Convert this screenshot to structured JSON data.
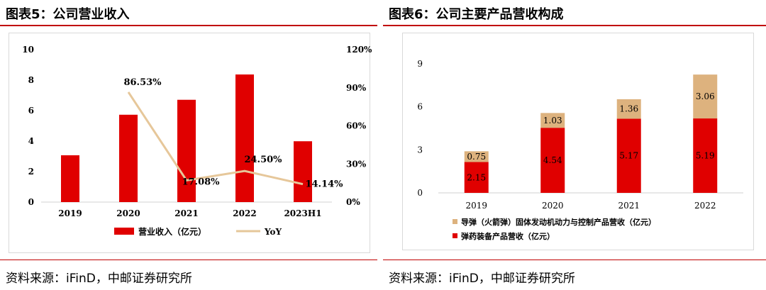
{
  "left": {
    "title": "图表5：公司营业收入",
    "source": "资料来源：iFinD，中邮证券研究所",
    "chart_data": {
      "type": "bar",
      "categories": [
        "2019",
        "2020",
        "2021",
        "2022",
        "2023H1"
      ],
      "series": [
        {
          "name": "营业收入（亿元）",
          "type": "bar",
          "axis": "left",
          "values": [
            3.07,
            5.73,
            6.71,
            8.37,
            3.99
          ],
          "color": "#e00000"
        },
        {
          "name": "YoY",
          "type": "line",
          "axis": "right",
          "values": [
            null,
            86.53,
            17.08,
            24.5,
            14.14
          ],
          "labels": [
            "",
            "86.53%",
            "17.08%",
            "24.50%",
            "14.14%"
          ],
          "color": "#e6c79a"
        }
      ],
      "ylim": [
        0,
        10
      ],
      "yticks": [
        "0",
        "2",
        "4",
        "6",
        "8",
        "10"
      ],
      "y2lim": [
        0,
        120
      ],
      "y2ticks": [
        "0%",
        "30%",
        "60%",
        "90%",
        "120%"
      ],
      "grid": false,
      "legend": "bottom"
    }
  },
  "right": {
    "title": "图表6：公司主要产品营收构成",
    "source": "资料来源：iFinD，中邮证券研究所",
    "chart_data": {
      "type": "bar",
      "stacked": true,
      "categories": [
        "2019",
        "2020",
        "2021",
        "2022"
      ],
      "series": [
        {
          "name": "弹药装备产品营收（亿元）",
          "values": [
            2.15,
            4.54,
            5.17,
            5.19
          ],
          "labels": [
            "2.15",
            "4.54",
            "5.17",
            "5.19"
          ],
          "color": "#e00000"
        },
        {
          "name": "导弹（火箭弹）固体发动机动力与控制产品营收（亿元）",
          "values": [
            0.75,
            1.03,
            1.36,
            3.06
          ],
          "labels": [
            "0.75",
            "1.03",
            "1.36",
            "3.06"
          ],
          "color": "#ddb27e"
        }
      ],
      "ylim": [
        0,
        9
      ],
      "yticks": [
        "0",
        "3",
        "6",
        "9"
      ],
      "grid": false,
      "legend": "bottom"
    }
  }
}
